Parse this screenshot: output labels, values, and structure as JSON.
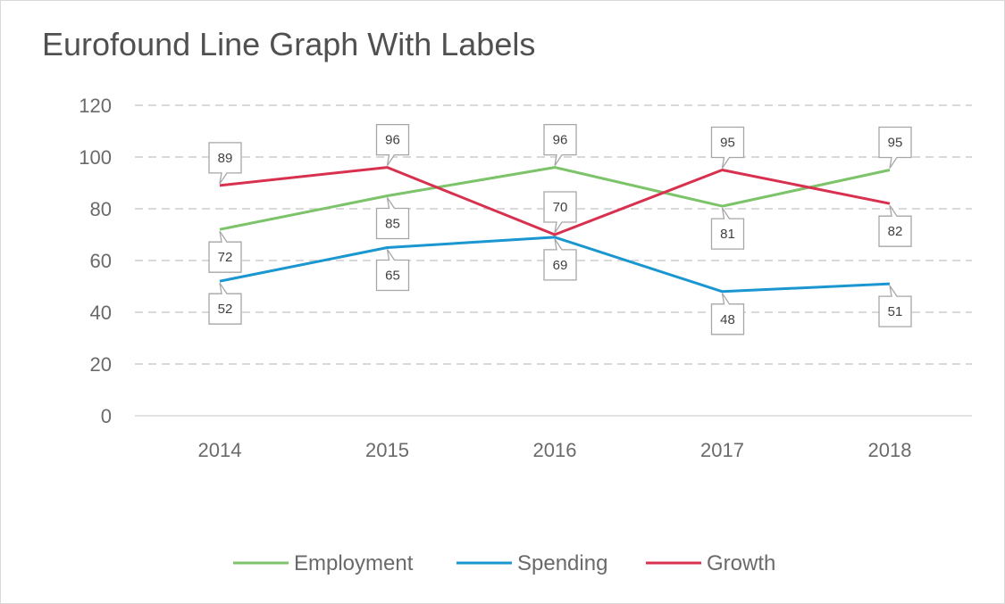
{
  "chart_data": {
    "type": "line",
    "title": "Eurofound Line Graph With Labels",
    "xlabel": "",
    "ylabel": "",
    "categories": [
      "2014",
      "2015",
      "2016",
      "2017",
      "2018"
    ],
    "ylim": [
      0,
      120
    ],
    "yticks": [
      0,
      20,
      40,
      60,
      80,
      100,
      120
    ],
    "grid": true,
    "legend_position": "bottom",
    "data_labels": true,
    "series": [
      {
        "name": "Employment",
        "color": "#7cc36a",
        "values": [
          72,
          85,
          96,
          81,
          95
        ],
        "label_side": [
          "below",
          "below",
          "above",
          "below",
          "above"
        ]
      },
      {
        "name": "Spending",
        "color": "#1a96d1",
        "values": [
          52,
          65,
          69,
          48,
          51
        ],
        "label_side": [
          "below",
          "below",
          "below",
          "below",
          "below"
        ]
      },
      {
        "name": "Growth",
        "color": "#d8314f",
        "values": [
          89,
          96,
          70,
          95,
          82
        ],
        "label_side": [
          "above",
          "above",
          "above",
          "above",
          "below"
        ]
      }
    ]
  }
}
